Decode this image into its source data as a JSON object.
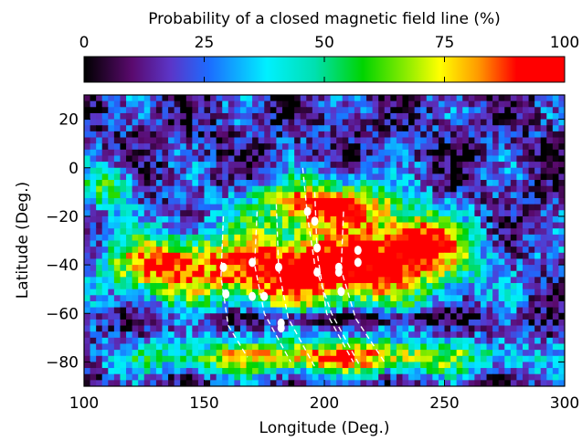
{
  "colorbar": {
    "title": "Probability of a closed magnetic field line (%)",
    "ticks": [
      0,
      25,
      50,
      75,
      100
    ],
    "stops": [
      {
        "v": 0,
        "color": "#000000"
      },
      {
        "v": 10,
        "color": "#5a0a6e"
      },
      {
        "v": 18,
        "color": "#5b35c8"
      },
      {
        "v": 26,
        "color": "#1c6cff"
      },
      {
        "v": 38,
        "color": "#00f0ff"
      },
      {
        "v": 48,
        "color": "#00e0b0"
      },
      {
        "v": 58,
        "color": "#00d400"
      },
      {
        "v": 68,
        "color": "#9aef00"
      },
      {
        "v": 74,
        "color": "#ffff00"
      },
      {
        "v": 82,
        "color": "#ff9a00"
      },
      {
        "v": 90,
        "color": "#ff0000"
      },
      {
        "v": 100,
        "color": "#ff0000"
      }
    ]
  },
  "chart_data": {
    "type": "heatmap",
    "xlabel": "Longitude (Deg.)",
    "ylabel": "Latitude (Deg.)",
    "xlim": [
      100,
      300
    ],
    "ylim": [
      -90,
      30
    ],
    "xticks": [
      100,
      150,
      200,
      250,
      300
    ],
    "yticks": [
      20,
      0,
      -20,
      -40,
      -60,
      -80
    ],
    "value_range": [
      0,
      100
    ],
    "high_probability_regions": [
      {
        "lon": [
          135,
          255
        ],
        "lat": [
          -62,
          -25
        ]
      },
      {
        "lon": [
          160,
          240
        ],
        "lat": [
          -22,
          -8
        ]
      },
      {
        "lon": [
          120,
          280
        ],
        "lat": [
          -85,
          -68
        ]
      }
    ],
    "markers": [
      {
        "lon": 158,
        "lat": -41
      },
      {
        "lon": 159,
        "lat": -52
      },
      {
        "lon": 170,
        "lat": -39
      },
      {
        "lon": 170,
        "lat": -53
      },
      {
        "lon": 175,
        "lat": -53
      },
      {
        "lon": 181,
        "lat": -41
      },
      {
        "lon": 182,
        "lat": -64
      },
      {
        "lon": 182,
        "lat": -66
      },
      {
        "lon": 193,
        "lat": -18
      },
      {
        "lon": 196,
        "lat": -22
      },
      {
        "lon": 197,
        "lat": -33
      },
      {
        "lon": 197,
        "lat": -43
      },
      {
        "lon": 206,
        "lat": -41
      },
      {
        "lon": 206,
        "lat": -43
      },
      {
        "lon": 207,
        "lat": -51
      },
      {
        "lon": 214,
        "lat": -34
      },
      {
        "lon": 214,
        "lat": -39
      }
    ],
    "dashed_lines": [
      {
        "points": [
          [
            158,
            -20
          ],
          [
            157,
            -45
          ],
          [
            160,
            -65
          ],
          [
            168,
            -78
          ]
        ]
      },
      {
        "points": [
          [
            172,
            -18
          ],
          [
            171,
            -40
          ],
          [
            175,
            -60
          ],
          [
            186,
            -80
          ]
        ]
      },
      {
        "points": [
          [
            180,
            -15
          ],
          [
            181,
            -42
          ],
          [
            185,
            -62
          ],
          [
            196,
            -82
          ]
        ]
      },
      {
        "points": [
          [
            196,
            -10
          ],
          [
            197,
            -35
          ],
          [
            201,
            -60
          ],
          [
            212,
            -80
          ]
        ]
      },
      {
        "points": [
          [
            208,
            -18
          ],
          [
            207,
            -42
          ],
          [
            213,
            -62
          ],
          [
            225,
            -80
          ]
        ]
      },
      {
        "points": [
          [
            191,
            0
          ],
          [
            193,
            -20
          ],
          [
            196,
            -40
          ],
          [
            203,
            -60
          ],
          [
            215,
            -82
          ]
        ]
      }
    ]
  }
}
